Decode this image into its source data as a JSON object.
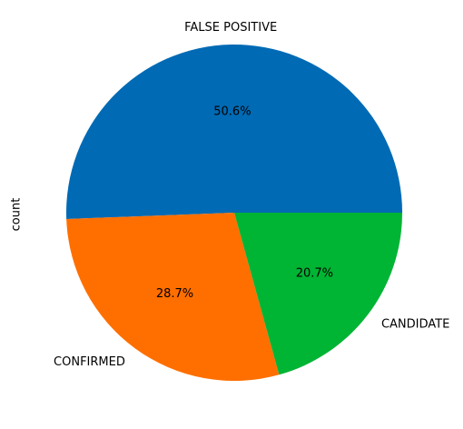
{
  "chart_data": {
    "type": "pie",
    "ylabel": "count",
    "slices": [
      {
        "label": "FALSE POSITIVE",
        "value": 50.6,
        "pct_text": "50.6%",
        "color": "#006ab4"
      },
      {
        "label": "CONFIRMED",
        "value": 28.7,
        "pct_text": "28.7%",
        "color": "#ff6f00"
      },
      {
        "label": "CANDIDATE",
        "value": 20.7,
        "pct_text": "20.7%",
        "color": "#00b434"
      }
    ],
    "start_angle_deg": 0,
    "direction": "counterclockwise",
    "legend": "none"
  }
}
